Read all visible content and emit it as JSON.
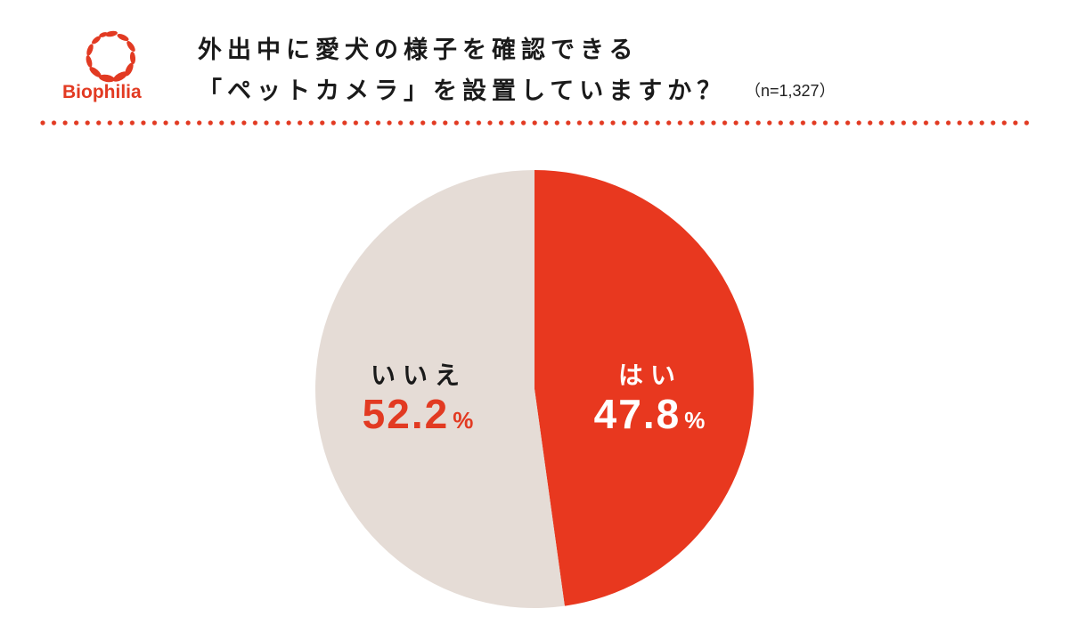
{
  "brand": {
    "name": "Biophilia",
    "color": "#e23a22"
  },
  "header": {
    "title_line1": "外出中に愛犬の様子を確認できる",
    "title_line2": "「ペットカメラ」を設置していますか？",
    "sample_size": "（n=1,327）"
  },
  "colors": {
    "yes": "#e8381f",
    "no": "#e5dcd6",
    "dots": "#e23a22"
  },
  "chart_data": {
    "type": "pie",
    "title": "外出中に愛犬の様子を確認できる「ペットカメラ」を設置していますか？",
    "subtitle": "（n=1,327）",
    "categories": [
      "はい",
      "いいえ"
    ],
    "values": [
      47.8,
      52.2
    ],
    "unit": "%",
    "colors": [
      "#e8381f",
      "#e5dcd6"
    ],
    "start_angle": "12 o'clock, clockwise",
    "legend": "none (inline labels)"
  },
  "labels": {
    "yes": {
      "name": "はい",
      "value": "47.8",
      "unit": "%"
    },
    "no": {
      "name": "いいえ",
      "value": "52.2",
      "unit": "%"
    }
  }
}
